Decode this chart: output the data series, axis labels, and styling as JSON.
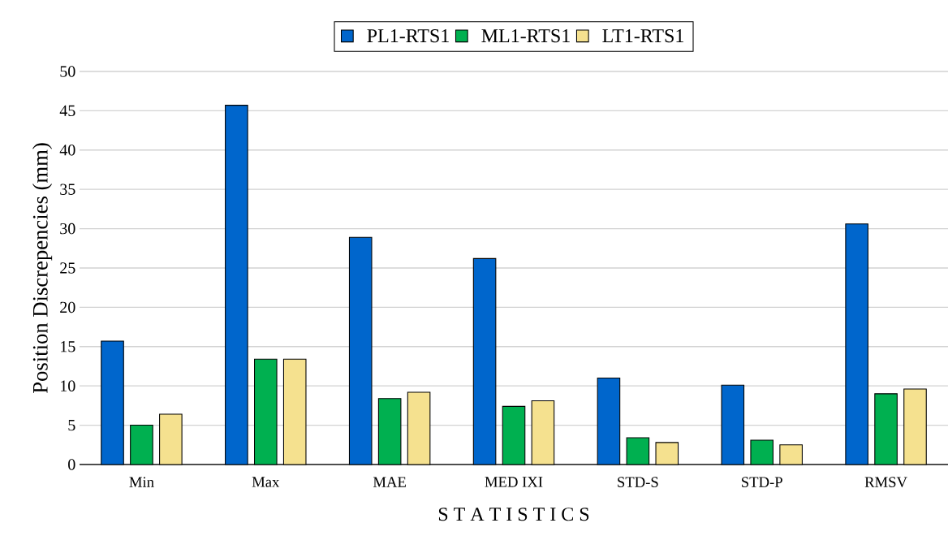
{
  "chart_data": {
    "type": "bar",
    "categories": [
      "Min",
      "Max",
      "MAE",
      "MED IXI",
      "STD-S",
      "STD-P",
      "RMSV"
    ],
    "xlabel": "S T A T I S T I C S",
    "ylabel": "Position Discrepencies (mm)",
    "series": [
      {
        "name": "PL1-RTS1",
        "color": "#0066cc",
        "values": [
          15.7,
          45.7,
          28.9,
          26.2,
          11.0,
          10.1,
          30.6
        ]
      },
      {
        "name": "ML1-RTS1",
        "color": "#00b050",
        "values": [
          5.0,
          13.4,
          8.4,
          7.4,
          3.4,
          3.1,
          9.0
        ]
      },
      {
        "name": "LT1-RTS1",
        "color": "#f5e18f",
        "values": [
          6.4,
          13.4,
          9.2,
          8.1,
          2.8,
          2.5,
          9.6
        ]
      }
    ],
    "ylim": [
      0,
      50
    ],
    "yticks": [
      0,
      5,
      10,
      15,
      20,
      25,
      30,
      35,
      40,
      45,
      50
    ],
    "grid": "y",
    "legend": "top"
  }
}
